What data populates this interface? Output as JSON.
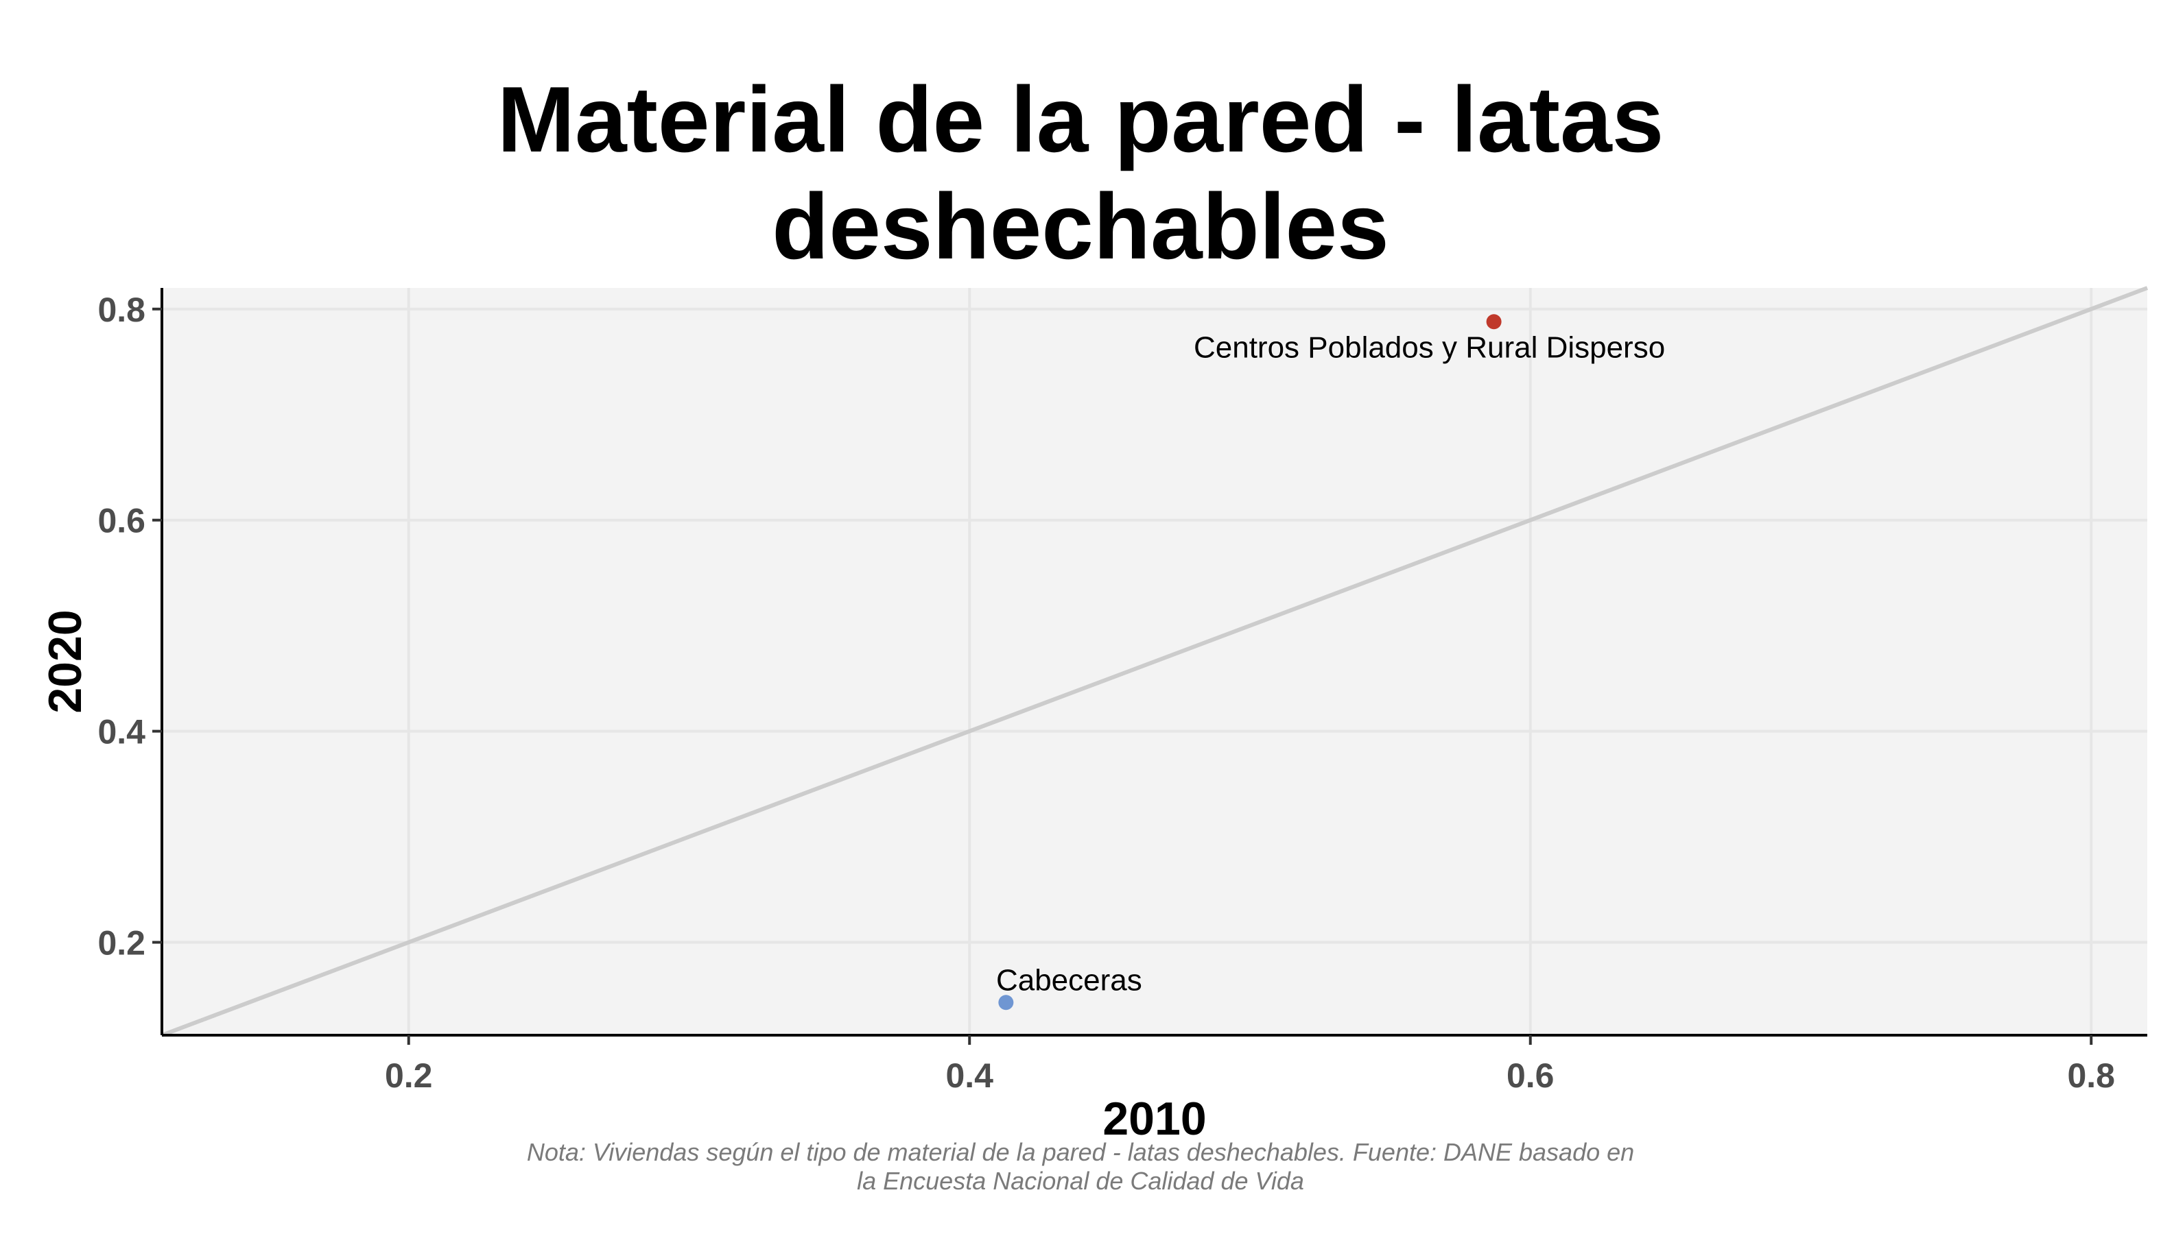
{
  "chart_data": {
    "type": "scatter",
    "title_lines": [
      "Material de la pared - latas",
      "deshechables"
    ],
    "xlabel": "2010",
    "ylabel": "2020",
    "xlim": [
      0.112,
      0.82
    ],
    "ylim": [
      0.112,
      0.82
    ],
    "x_ticks": [
      0.2,
      0.4,
      0.6,
      0.8
    ],
    "x_tick_labels": [
      "0.2",
      "0.4",
      "0.6",
      "0.8"
    ],
    "y_ticks": [
      0.2,
      0.4,
      0.6,
      0.8
    ],
    "y_tick_labels": [
      "0.2",
      "0.4",
      "0.6",
      "0.8"
    ],
    "grid": true,
    "reference_line": "y = x",
    "points": [
      {
        "label": "Cabeceras",
        "x": 0.413,
        "y": 0.143,
        "color": "#6f96d2",
        "label_position": "above"
      },
      {
        "label": "Centros Poblados y Rural Disperso",
        "x": 0.587,
        "y": 0.788,
        "color": "#c0392b",
        "label_position": "below"
      }
    ],
    "caption_lines": [
      "Nota: Viviendas según el tipo de material de la pared - latas deshechables. Fuente: DANE basado en",
      "la Encuesta Nacional de Calidad de Vida"
    ]
  },
  "colors": {
    "panel_background": "#f3f3f3",
    "grid": "#e6e6e6",
    "reference_line": "#cccccc",
    "axis_line": "#000000"
  }
}
